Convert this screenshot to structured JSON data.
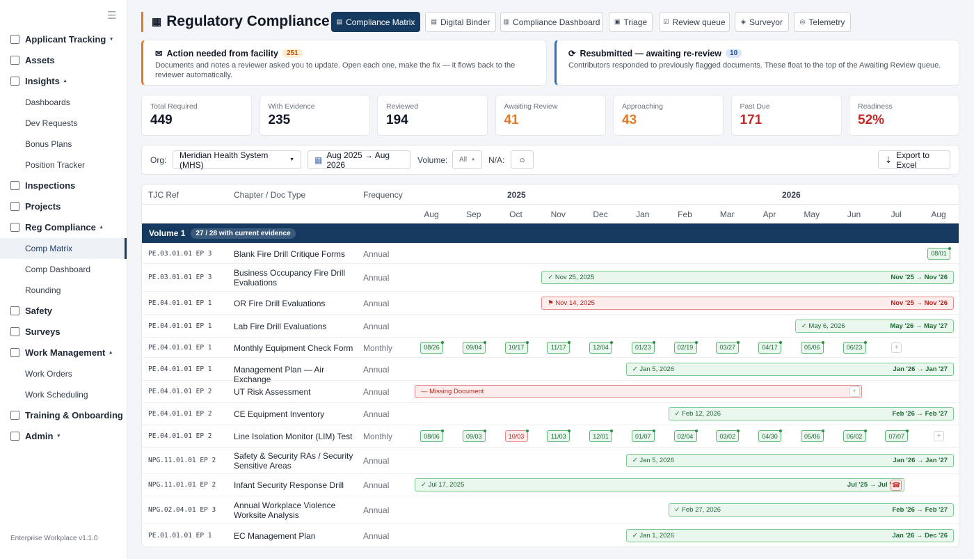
{
  "sidebar": {
    "toggle_icon": "hamburger-icon",
    "items": [
      {
        "label": "Applicant Tracking",
        "caret": "▾"
      },
      {
        "label": "Assets"
      },
      {
        "label": "Insights",
        "caret": "▴"
      },
      {
        "label": "Dashboards"
      },
      {
        "label": "Dev Requests"
      },
      {
        "label": "Bonus Plans"
      },
      {
        "label": "Position Tracker"
      },
      {
        "label": "Inspections"
      },
      {
        "label": "Projects"
      },
      {
        "label": "Reg Compliance",
        "caret": "▴"
      },
      {
        "label": "Comp Matrix"
      },
      {
        "label": "Comp Dashboard"
      },
      {
        "label": "Rounding"
      },
      {
        "label": "Safety"
      },
      {
        "label": "Surveys"
      },
      {
        "label": "Work Management",
        "caret": "▴"
      },
      {
        "label": "Work Orders"
      },
      {
        "label": "Work Scheduling"
      },
      {
        "label": "Training & Onboarding"
      },
      {
        "label": "Admin",
        "caret": "▾"
      }
    ],
    "version": "Enterprise Workplace v1.1.0"
  },
  "header": {
    "title": "Regulatory Compliance",
    "tabs": [
      {
        "icon": "▤",
        "label": "Compliance Matrix"
      },
      {
        "icon": "▤",
        "label": "Digital Binder"
      },
      {
        "icon": "▥",
        "label": "Compliance Dashboard"
      },
      {
        "icon": "▣",
        "label": "Triage"
      },
      {
        "icon": "☑",
        "label": "Review queue"
      },
      {
        "icon": "◈",
        "label": "Surveyor"
      },
      {
        "icon": "◎",
        "label": "Telemetry"
      }
    ]
  },
  "banners": {
    "action": {
      "title": "Action needed from facility",
      "count": "251",
      "body": "Documents and notes a reviewer asked you to update. Open each one, make the fix — it flows back to the reviewer automatically."
    },
    "resubmitted": {
      "title": "Resubmitted — awaiting re-review",
      "count": "10",
      "body": "Contributors responded to previously flagged documents. These float to the top of the Awaiting Review queue."
    }
  },
  "kpis": [
    {
      "label": "Total Required",
      "value": "449",
      "tone": ""
    },
    {
      "label": "With Evidence",
      "value": "235",
      "tone": ""
    },
    {
      "label": "Reviewed",
      "value": "194",
      "tone": ""
    },
    {
      "label": "Awaiting Review",
      "value": "41",
      "tone": "orange"
    },
    {
      "label": "Approaching",
      "value": "43",
      "tone": "orange"
    },
    {
      "label": "Past Due",
      "value": "171",
      "tone": "red"
    },
    {
      "label": "Readiness",
      "value": "52%",
      "tone": "red"
    }
  ],
  "filters": {
    "org_label": "Org:",
    "org_value": "Meridian Health System (MHS)",
    "date_range": "Aug 2025 → Aug 2026",
    "volume_label": "Volume:",
    "volume_value": "All",
    "na_label": "N/A:",
    "export_label": "Export to Excel"
  },
  "grid": {
    "col_ref": "TJC Ref",
    "col_doc": "Chapter / Doc Type",
    "col_freq": "Frequency",
    "year1": "2025",
    "year2": "2026",
    "months": [
      "Aug",
      "Sep",
      "Oct",
      "Nov",
      "Dec",
      "Jan",
      "Feb",
      "Mar",
      "Apr",
      "May",
      "Jun",
      "Jul",
      "Aug"
    ],
    "volume": {
      "label": "Volume 1",
      "pill": "27 / 28 with current evidence"
    },
    "rows": [
      {
        "ref": "PE.03.01.01 EP 3",
        "doc": "Blank Fire Drill Critique Forms",
        "freq": "Annual",
        "chips": [
          {
            "m": 12,
            "t": "08/01"
          }
        ]
      },
      {
        "ref": "PE.03.01.01 EP 3",
        "doc": "Business Occupancy Fire Drill Evaluations",
        "freq": "Annual",
        "bar": {
          "from": 3,
          "to": 13,
          "status": "ok",
          "text": "✓  Nov 25, 2025",
          "range": "Nov '25 → Nov '26"
        }
      },
      {
        "ref": "PE.04.01.01 EP 1",
        "doc": "OR Fire Drill Evaluations",
        "freq": "Annual",
        "bar": {
          "from": 3,
          "to": 13,
          "status": "red",
          "text": "⚑  Nov 14, 2025",
          "range": "Nov '25 → Nov '26"
        }
      },
      {
        "ref": "PE.04.01.01 EP 1",
        "doc": "Lab Fire Drill Evaluations",
        "freq": "Annual",
        "bar": {
          "from": 9,
          "to": 13,
          "status": "ok",
          "text": "✓  May 6, 2026",
          "range": "May '26 → May '27"
        }
      },
      {
        "ref": "PE.04.01.01 EP 1",
        "doc": "Monthly Equipment Check Form",
        "freq": "Monthly",
        "chips": [
          {
            "m": 0,
            "t": "08/26"
          },
          {
            "m": 1,
            "t": "09/04"
          },
          {
            "m": 2,
            "t": "10/17"
          },
          {
            "m": 3,
            "t": "11/17"
          },
          {
            "m": 4,
            "t": "12/04"
          },
          {
            "m": 5,
            "t": "01/23"
          },
          {
            "m": 6,
            "t": "02/19"
          },
          {
            "m": 7,
            "t": "03/27"
          },
          {
            "m": 8,
            "t": "04/17"
          },
          {
            "m": 9,
            "t": "05/06"
          },
          {
            "m": 10,
            "t": "06/23"
          }
        ],
        "add": 11
      },
      {
        "ref": "PE.04.01.01 EP 1",
        "doc": "Management Plan — Air Exchange",
        "freq": "Annual",
        "bar": {
          "from": 5,
          "to": 13,
          "status": "ok",
          "text": "✓  Jan 5, 2026",
          "range": "Jan '26 → Jan '27"
        }
      },
      {
        "ref": "PE.04.01.01 EP 2",
        "doc": "UT Risk Assessment",
        "freq": "Annual",
        "bar": {
          "from": 0,
          "to": 9.8,
          "status": "red",
          "text": "—   Missing Document",
          "range": ""
        },
        "add": 10
      },
      {
        "ref": "PE.04.01.01 EP 2",
        "doc": "CE Equipment Inventory",
        "freq": "Annual",
        "bar": {
          "from": 6,
          "to": 13,
          "status": "ok",
          "text": "✓  Feb 12, 2026",
          "range": "Feb '26 → Feb '27"
        }
      },
      {
        "ref": "PE.04.01.01 EP 2",
        "doc": "Line Isolation Monitor (LIM) Test",
        "freq": "Monthly",
        "chips": [
          {
            "m": 0,
            "t": "08/06"
          },
          {
            "m": 1,
            "t": "09/03"
          },
          {
            "m": 2,
            "t": "10/03",
            "red": true
          },
          {
            "m": 3,
            "t": "11/03"
          },
          {
            "m": 4,
            "t": "12/01"
          },
          {
            "m": 5,
            "t": "01/07"
          },
          {
            "m": 6,
            "t": "02/04"
          },
          {
            "m": 7,
            "t": "03/02"
          },
          {
            "m": 8,
            "t": "04/30"
          },
          {
            "m": 9,
            "t": "05/06"
          },
          {
            "m": 10,
            "t": "06/02"
          },
          {
            "m": 11,
            "t": "07/07"
          }
        ],
        "add": 12
      },
      {
        "ref": "NPG.11.01.01 EP 2",
        "doc": "Safety & Security RAs / Security Sensitive Areas",
        "freq": "Annual",
        "bar": {
          "from": 5,
          "to": 13,
          "status": "ok",
          "text": "✓  Jan 5, 2026",
          "range": "Jan '26 → Jan '27"
        }
      },
      {
        "ref": "NPG.11.01.01 EP 2",
        "doc": "Infant Security Response Drill",
        "freq": "Annual",
        "bar": {
          "from": 0,
          "to": 10.8,
          "status": "ok",
          "text": "✓  Jul 17, 2025",
          "range": "Jul '25 → Jul '26"
        },
        "alert": 11
      },
      {
        "ref": "NPG.02.04.01 EP 3",
        "doc": "Annual Workplace Violence Worksite Analysis",
        "freq": "Annual",
        "bar": {
          "from": 6,
          "to": 13,
          "status": "ok",
          "text": "✓  Feb 27, 2026",
          "range": "Feb '26 → Feb '27"
        }
      },
      {
        "ref": "PE.01.01.01 EP 1",
        "doc": "EC Management Plan",
        "freq": "Annual",
        "bar": {
          "from": 5,
          "to": 13,
          "status": "ok",
          "text": "✓  Jan 1, 2026",
          "range": "Jan '26 → Dec '26"
        }
      }
    ]
  }
}
